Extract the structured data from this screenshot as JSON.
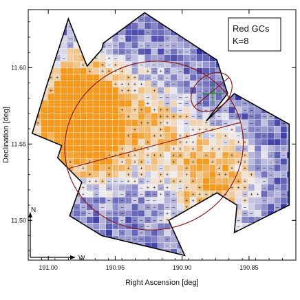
{
  "chart_data": {
    "type": "heatmap",
    "title": "",
    "xlabel": "Right Ascension [deg]",
    "ylabel": "Declination [deg]",
    "xlim": [
      191.015,
      190.815
    ],
    "ylim": [
      11.474,
      11.638
    ],
    "x_inverted": true,
    "xticks": [
      191.0,
      190.95,
      190.9,
      190.85
    ],
    "xtick_labels": [
      "191.00",
      "190.95",
      "190.90",
      "190.85"
    ],
    "yticks": [
      11.5,
      11.55,
      11.6
    ],
    "ytick_labels": [
      "11.50",
      "11.55",
      "11.60"
    ],
    "grid": false,
    "annotation": {
      "line1": "Red GCs",
      "line2": "K=8",
      "placement": "top-right"
    },
    "compass": {
      "north": "N",
      "west": "W",
      "placement": "bottom-left"
    },
    "colors": {
      "overdensity": "#f39a1e",
      "underdensity": "#3030a0",
      "neutral": "#eeeef4",
      "footprint": "#000000",
      "ellipse": "#8b1a1a",
      "center_cross": "#2e8b2e"
    },
    "footprint_ra_dec": [
      [
        190.985,
        11.632
      ],
      [
        190.971,
        11.601
      ],
      [
        190.96,
        11.612
      ],
      [
        190.959,
        11.616
      ],
      [
        190.928,
        11.636
      ],
      [
        190.874,
        11.605
      ],
      [
        190.866,
        11.583
      ],
      [
        190.882,
        11.565
      ],
      [
        190.861,
        11.583
      ],
      [
        190.82,
        11.563
      ],
      [
        190.82,
        11.51
      ],
      [
        190.861,
        11.492
      ],
      [
        190.859,
        11.51
      ],
      [
        190.874,
        11.518
      ],
      [
        190.91,
        11.5
      ],
      [
        190.898,
        11.477
      ],
      [
        190.96,
        11.49
      ],
      [
        190.984,
        11.503
      ],
      [
        190.975,
        11.525
      ],
      [
        190.993,
        11.541
      ],
      [
        190.99,
        11.549
      ],
      [
        191.012,
        11.557
      ],
      [
        191.002,
        11.586
      ]
    ],
    "main_ellipse": {
      "ra": 190.921,
      "dec": 11.549,
      "semi_major_deg": 0.067,
      "semi_minor_deg": 0.055,
      "pa_deg": 15
    },
    "small_ellipse": {
      "ra": 190.878,
      "dec": 11.584,
      "semi_major_deg": 0.017,
      "semi_minor_deg": 0.011,
      "pa_deg": 40
    },
    "center_marker": {
      "ra": 190.877,
      "dec": 11.583
    },
    "hotspot_centers": [
      {
        "ra": 190.975,
        "dec": 11.585,
        "weight": 1.3
      },
      {
        "ra": 190.99,
        "dec": 11.56,
        "weight": 1.1
      },
      {
        "ra": 190.96,
        "dec": 11.548,
        "weight": 1.0
      },
      {
        "ra": 190.93,
        "dec": 11.575,
        "weight": 0.6
      },
      {
        "ra": 190.905,
        "dec": 11.548,
        "weight": 0.6
      },
      {
        "ra": 190.87,
        "dec": 11.53,
        "weight": 0.9
      },
      {
        "ra": 190.89,
        "dec": 11.503,
        "weight": 0.5
      }
    ]
  }
}
